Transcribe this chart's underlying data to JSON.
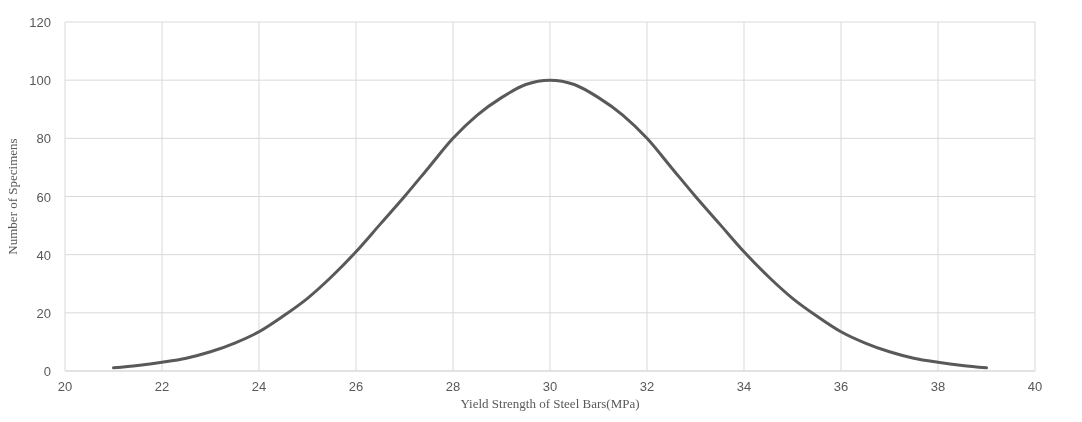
{
  "chart_data": {
    "type": "line",
    "xlabel": "Yield Strength of Steel Bars(MPa)",
    "ylabel": "Number of Specimens",
    "x": [
      21,
      21.5,
      22,
      22.5,
      23,
      23.5,
      24,
      24.5,
      25,
      25.5,
      26,
      26.5,
      27,
      27.5,
      28,
      28.5,
      29,
      29.5,
      30,
      30.5,
      31,
      31.5,
      32,
      32.5,
      33,
      33.5,
      34,
      34.5,
      35,
      35.5,
      36,
      36.5,
      37,
      37.5,
      38,
      38.5,
      39
    ],
    "series": [
      {
        "color": "#595959",
        "values": [
          1.1,
          1.9,
          3,
          4.4,
          6.6,
          9.6,
          13.5,
          18.9,
          25,
          32.5,
          41,
          50.5,
          60,
          70,
          80,
          88,
          94,
          98.5,
          100,
          98.5,
          94,
          88,
          80,
          70,
          60,
          50.5,
          41,
          32.5,
          25,
          18.9,
          13.5,
          9.6,
          6.6,
          4.4,
          3,
          1.9,
          1.1
        ]
      }
    ],
    "xlim": [
      20,
      40
    ],
    "xticks": [
      20,
      22,
      24,
      26,
      28,
      30,
      32,
      34,
      36,
      38,
      40
    ],
    "ylim": [
      0,
      120
    ],
    "yticks": [
      0,
      20,
      40,
      60,
      80,
      100,
      120
    ],
    "grid": true,
    "marker": "none",
    "line_style": "solid"
  }
}
